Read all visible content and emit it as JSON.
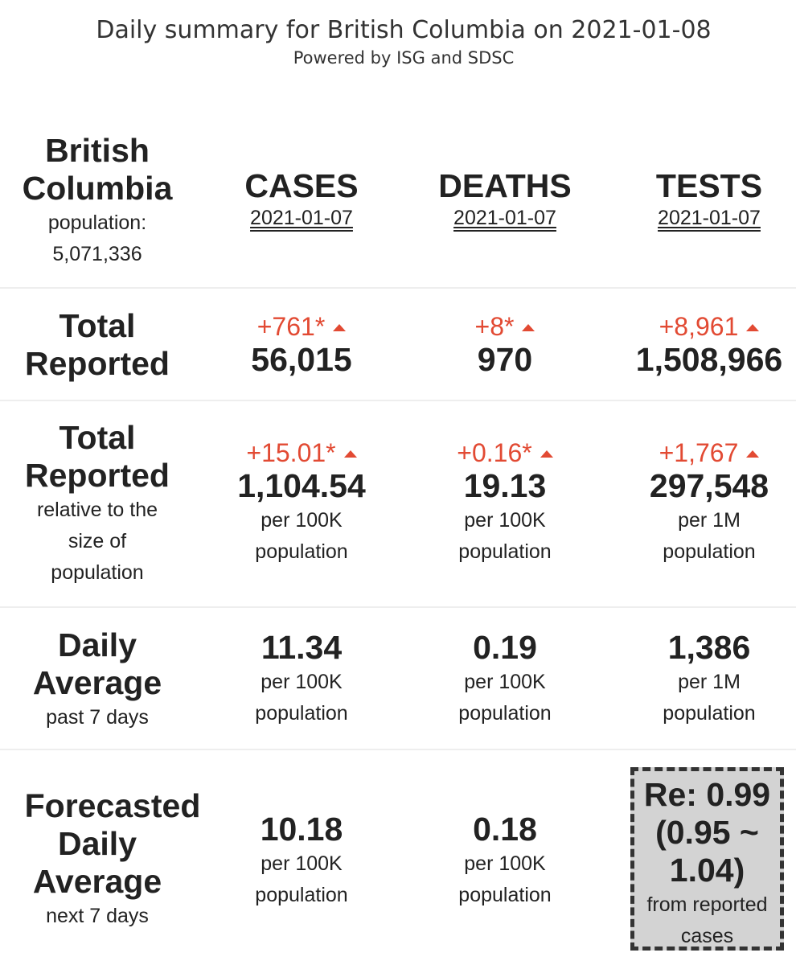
{
  "header": {
    "title": "Daily summary for British Columbia on 2021-01-08",
    "subtitle": "Powered by ISG and SDSC"
  },
  "region": {
    "name_line1": "British",
    "name_line2": "Columbia",
    "population_label": "population:",
    "population_value": "5,071,336"
  },
  "columns": [
    {
      "label": "CASES",
      "date": "2021-01-07"
    },
    {
      "label": "DEATHS",
      "date": "2021-01-07"
    },
    {
      "label": "TESTS",
      "date": "2021-01-07"
    }
  ],
  "total_reported": {
    "label_line1": "Total",
    "label_line2": "Reported",
    "cases": {
      "delta": "+761*",
      "value": "56,015"
    },
    "deaths": {
      "delta": "+8*",
      "value": "970"
    },
    "tests": {
      "delta": "+8,961",
      "value": "1,508,966"
    }
  },
  "relative": {
    "label_line1": "Total",
    "label_line2": "Reported",
    "sub_line1": "relative to the",
    "sub_line2": "size of",
    "sub_line3": "population",
    "cases": {
      "delta": "+15.01*",
      "value": "1,104.54",
      "unit_line1": "per 100K",
      "unit_line2": "population"
    },
    "deaths": {
      "delta": "+0.16*",
      "value": "19.13",
      "unit_line1": "per 100K",
      "unit_line2": "population"
    },
    "tests": {
      "delta": "+1,767",
      "value": "297,548",
      "unit_line1": "per 1M",
      "unit_line2": "population"
    }
  },
  "daily_average": {
    "label_line1": "Daily",
    "label_line2": "Average",
    "sub": "past 7 days",
    "cases": {
      "value": "11.34",
      "unit_line1": "per 100K",
      "unit_line2": "population"
    },
    "deaths": {
      "value": "0.19",
      "unit_line1": "per 100K",
      "unit_line2": "population"
    },
    "tests": {
      "value": "1,386",
      "unit_line1": "per 1M",
      "unit_line2": "population"
    }
  },
  "forecast": {
    "label_line1": "Forecasted",
    "label_line2": "Daily",
    "label_line3": "Average",
    "sub": "next 7 days",
    "cases": {
      "value": "10.18",
      "unit_line1": "per 100K",
      "unit_line2": "population"
    },
    "deaths": {
      "value": "0.18",
      "unit_line1": "per 100K",
      "unit_line2": "population"
    },
    "re": {
      "line1": "Re: 0.99",
      "line2": "(0.95 ~",
      "line3": "1.04)",
      "sub_line1": "from reported",
      "sub_line2": "cases"
    }
  },
  "colors": {
    "increase": "#e24a33",
    "text": "#222222",
    "re_box_bg": "#d3d3d3"
  }
}
